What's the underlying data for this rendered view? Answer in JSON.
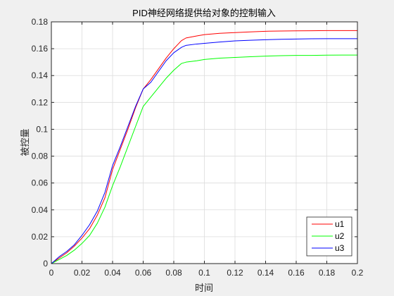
{
  "chart_data": {
    "type": "line",
    "title": "PID神经网络提供给对象的控制输入",
    "xlabel": "时间",
    "ylabel": "被控量",
    "xlim": [
      0,
      0.2
    ],
    "ylim": [
      0,
      0.18
    ],
    "xticks": [
      0,
      0.02,
      0.04,
      0.06,
      0.08,
      0.1,
      0.12,
      0.14,
      0.16,
      0.18,
      0.2
    ],
    "xtick_labels": [
      "0",
      "0.02",
      "0.04",
      "0.06",
      "0.08",
      "0.1",
      "0.12",
      "0.14",
      "0.16",
      "0.18",
      "0.2"
    ],
    "yticks": [
      0,
      0.02,
      0.04,
      0.06,
      0.08,
      0.1,
      0.12,
      0.14,
      0.16,
      0.18
    ],
    "ytick_labels": [
      "0",
      "0.02",
      "0.04",
      "0.06",
      "0.08",
      "0.1",
      "0.12",
      "0.14",
      "0.16",
      "0.18"
    ],
    "grid": true,
    "legend_position": "bottom-right",
    "series": [
      {
        "name": "u1",
        "color": "#ff0000",
        "x": [
          0,
          0.005,
          0.01,
          0.015,
          0.02,
          0.025,
          0.03,
          0.035,
          0.04,
          0.045,
          0.05,
          0.055,
          0.06,
          0.065,
          0.07,
          0.075,
          0.08,
          0.085,
          0.088,
          0.095,
          0.1,
          0.11,
          0.12,
          0.13,
          0.14,
          0.15,
          0.16,
          0.17,
          0.18,
          0.19,
          0.2
        ],
        "y": [
          0,
          0.004,
          0.008,
          0.013,
          0.019,
          0.026,
          0.036,
          0.049,
          0.07,
          0.085,
          0.1,
          0.116,
          0.13,
          0.137,
          0.145,
          0.153,
          0.16,
          0.166,
          0.168,
          0.1695,
          0.1705,
          0.1715,
          0.172,
          0.1725,
          0.173,
          0.1732,
          0.1733,
          0.1734,
          0.1735,
          0.1735,
          0.1735
        ]
      },
      {
        "name": "u2",
        "color": "#00ff00",
        "x": [
          0,
          0.005,
          0.01,
          0.015,
          0.02,
          0.025,
          0.03,
          0.035,
          0.04,
          0.045,
          0.05,
          0.055,
          0.06,
          0.065,
          0.07,
          0.075,
          0.08,
          0.085,
          0.088,
          0.095,
          0.1,
          0.11,
          0.12,
          0.13,
          0.14,
          0.15,
          0.16,
          0.17,
          0.18,
          0.19,
          0.2
        ],
        "y": [
          0,
          0.003,
          0.006,
          0.01,
          0.015,
          0.021,
          0.03,
          0.042,
          0.058,
          0.072,
          0.087,
          0.102,
          0.117,
          0.124,
          0.131,
          0.138,
          0.144,
          0.149,
          0.15,
          0.151,
          0.152,
          0.153,
          0.1535,
          0.154,
          0.1545,
          0.1548,
          0.155,
          0.155,
          0.1552,
          0.1553,
          0.1553
        ]
      },
      {
        "name": "u3",
        "color": "#0000ff",
        "x": [
          0,
          0.005,
          0.01,
          0.015,
          0.02,
          0.025,
          0.03,
          0.035,
          0.04,
          0.045,
          0.05,
          0.055,
          0.06,
          0.065,
          0.07,
          0.075,
          0.08,
          0.085,
          0.088,
          0.095,
          0.1,
          0.11,
          0.12,
          0.13,
          0.14,
          0.15,
          0.16,
          0.17,
          0.18,
          0.19,
          0.2
        ],
        "y": [
          0,
          0.005,
          0.009,
          0.014,
          0.021,
          0.029,
          0.039,
          0.053,
          0.073,
          0.087,
          0.102,
          0.117,
          0.13,
          0.135,
          0.143,
          0.151,
          0.157,
          0.161,
          0.1625,
          0.1635,
          0.164,
          0.165,
          0.1658,
          0.1663,
          0.1667,
          0.167,
          0.1672,
          0.1674,
          0.1675,
          0.1675,
          0.1675
        ]
      }
    ]
  }
}
